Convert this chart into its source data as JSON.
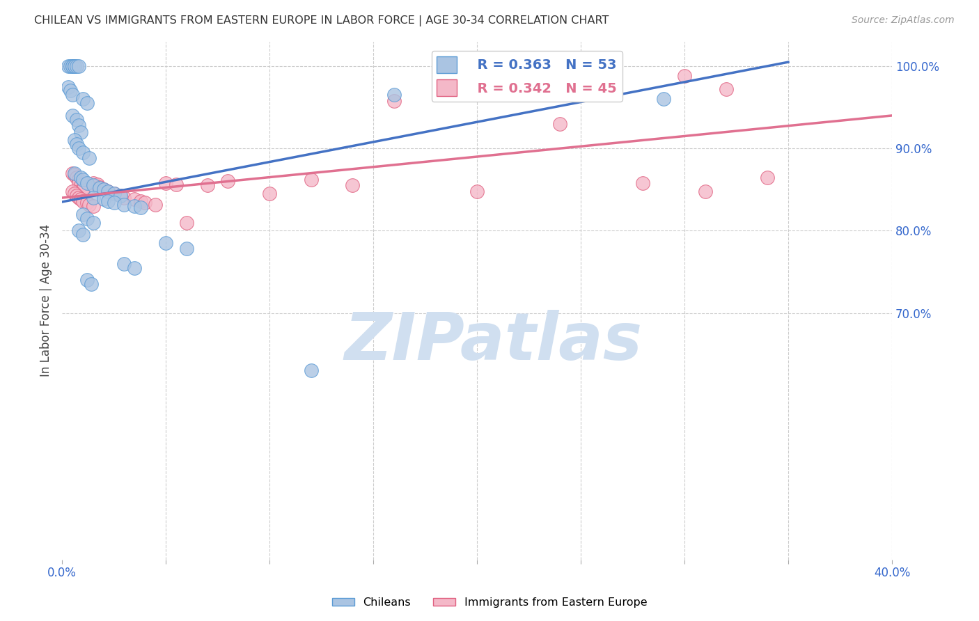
{
  "title": "CHILEAN VS IMMIGRANTS FROM EASTERN EUROPE IN LABOR FORCE | AGE 30-34 CORRELATION CHART",
  "source": "Source: ZipAtlas.com",
  "ylabel": "In Labor Force | Age 30-34",
  "xlim": [
    0.0,
    0.4
  ],
  "ylim": [
    0.4,
    1.03
  ],
  "xtick_vals": [
    0.0,
    0.05,
    0.1,
    0.15,
    0.2,
    0.25,
    0.3,
    0.35,
    0.4
  ],
  "xticklabels": [
    "0.0%",
    "",
    "",
    "",
    "",
    "",
    "",
    "",
    "40.0%"
  ],
  "yticks_right": [
    0.7,
    0.8,
    0.9,
    1.0
  ],
  "ytick_labels_right": [
    "70.0%",
    "80.0%",
    "90.0%",
    "100.0%"
  ],
  "r_chilean": 0.363,
  "n_chilean": 53,
  "r_eastern": 0.342,
  "n_eastern": 45,
  "chilean_color": "#aac4e2",
  "chilean_edge_color": "#5b9bd5",
  "eastern_color": "#f4b8c8",
  "eastern_edge_color": "#e06080",
  "line_chilean_color": "#4472c4",
  "line_eastern_color": "#e07090",
  "watermark_color": "#d0dff0",
  "background_color": "#ffffff",
  "chilean_x": [
    0.003,
    0.004,
    0.005,
    0.005,
    0.006,
    0.006,
    0.007,
    0.008,
    0.003,
    0.004,
    0.005,
    0.01,
    0.012,
    0.005,
    0.007,
    0.008,
    0.009,
    0.006,
    0.007,
    0.008,
    0.01,
    0.013,
    0.006,
    0.009,
    0.01,
    0.012,
    0.015,
    0.018,
    0.02,
    0.022,
    0.025,
    0.028,
    0.015,
    0.02,
    0.022,
    0.025,
    0.03,
    0.035,
    0.038,
    0.01,
    0.012,
    0.015,
    0.008,
    0.01,
    0.05,
    0.06,
    0.03,
    0.035,
    0.012,
    0.014,
    0.16,
    0.29,
    0.12
  ],
  "chilean_y": [
    1.0,
    1.0,
    1.0,
    1.0,
    1.0,
    1.0,
    1.0,
    1.0,
    0.975,
    0.97,
    0.965,
    0.96,
    0.955,
    0.94,
    0.935,
    0.928,
    0.92,
    0.91,
    0.905,
    0.9,
    0.895,
    0.888,
    0.87,
    0.865,
    0.862,
    0.858,
    0.855,
    0.852,
    0.85,
    0.848,
    0.845,
    0.843,
    0.84,
    0.838,
    0.836,
    0.834,
    0.832,
    0.83,
    0.828,
    0.82,
    0.815,
    0.81,
    0.8,
    0.795,
    0.785,
    0.778,
    0.76,
    0.755,
    0.74,
    0.735,
    0.965,
    0.96,
    0.63
  ],
  "eastern_x": [
    0.005,
    0.006,
    0.007,
    0.008,
    0.008,
    0.009,
    0.01,
    0.01,
    0.005,
    0.006,
    0.007,
    0.008,
    0.009,
    0.01,
    0.012,
    0.013,
    0.015,
    0.015,
    0.017,
    0.018,
    0.02,
    0.022,
    0.025,
    0.028,
    0.03,
    0.035,
    0.038,
    0.04,
    0.045,
    0.05,
    0.055,
    0.06,
    0.07,
    0.08,
    0.1,
    0.12,
    0.14,
    0.16,
    0.2,
    0.24,
    0.28,
    0.3,
    0.31,
    0.32,
    0.34
  ],
  "eastern_y": [
    0.87,
    0.868,
    0.865,
    0.862,
    0.858,
    0.855,
    0.852,
    0.85,
    0.848,
    0.845,
    0.843,
    0.84,
    0.838,
    0.836,
    0.834,
    0.832,
    0.83,
    0.858,
    0.856,
    0.853,
    0.85,
    0.848,
    0.845,
    0.843,
    0.84,
    0.838,
    0.836,
    0.834,
    0.832,
    0.858,
    0.856,
    0.81,
    0.855,
    0.86,
    0.845,
    0.862,
    0.855,
    0.958,
    0.848,
    0.93,
    0.858,
    0.988,
    0.848,
    0.972,
    0.865
  ]
}
